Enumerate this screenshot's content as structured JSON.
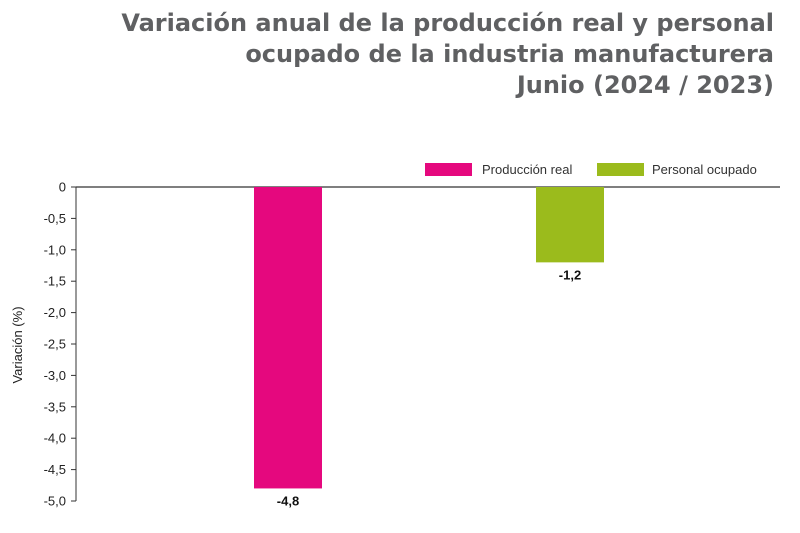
{
  "title": {
    "line1": "Variación anual de la producción real y personal",
    "line2": "ocupado de la industria manufacturera",
    "line3": "Junio (2024 / 2023)"
  },
  "chart_data": {
    "type": "bar",
    "ylabel": "Variación (%)",
    "ylim": [
      -5.0,
      0
    ],
    "yticks": [
      "0",
      "-0,5",
      "-1,0",
      "-1,5",
      "-2,0",
      "-2,5",
      "-3,0",
      "-3,5",
      "-4,0",
      "-4,5",
      "-5,0"
    ],
    "legend_position": "top-right",
    "series": [
      {
        "name": "Producción real",
        "value": -4.8,
        "label": "-4,8",
        "color": "#e5087e"
      },
      {
        "name": "Personal ocupado",
        "value": -1.2,
        "label": "-1,2",
        "color": "#9bbb1c"
      }
    ]
  }
}
